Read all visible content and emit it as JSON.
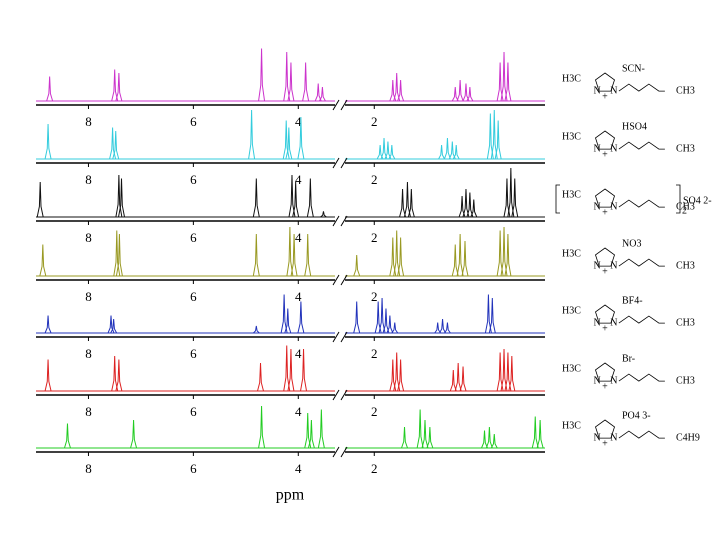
{
  "chart_data": {
    "type": "stacked-spectra",
    "xlabel": "ppm",
    "segments": [
      {
        "xlim": [
          9.0,
          3.3
        ]
      },
      {
        "xlim": [
          2.3,
          0.25
        ]
      }
    ],
    "xticks": [
      8,
      6,
      4,
      2
    ],
    "structure_common": {
      "atom": "N",
      "charge": "+"
    },
    "series": [
      {
        "color": "#cc33cc",
        "structure": {
          "left": "H3C",
          "anion": "SCN-",
          "right": "CH3"
        },
        "peaks": [
          8.74,
          7.5,
          7.42,
          4.7,
          4.22,
          4.14,
          3.86,
          3.62,
          3.54,
          1.81,
          1.77,
          1.73,
          1.17,
          1.12,
          1.06,
          1.02,
          0.71,
          0.67,
          0.63
        ],
        "heights": [
          35,
          45,
          40,
          75,
          70,
          55,
          55,
          25,
          20,
          30,
          40,
          30,
          20,
          30,
          25,
          20,
          55,
          70,
          55
        ]
      },
      {
        "color": "#33ccdd",
        "structure": {
          "left": "H3C",
          "anion": "HSO4",
          "right": "CH3"
        },
        "peaks": [
          8.77,
          7.54,
          7.48,
          4.89,
          4.23,
          4.18,
          3.95,
          1.94,
          1.9,
          1.86,
          1.82,
          1.31,
          1.25,
          1.2,
          1.16,
          0.81,
          0.77,
          0.73
        ],
        "heights": [
          50,
          45,
          40,
          70,
          55,
          45,
          60,
          20,
          30,
          25,
          20,
          20,
          30,
          25,
          20,
          65,
          70,
          55
        ]
      },
      {
        "color": "#111111",
        "structure": {
          "left": "H3C",
          "anion": "SO4 2-",
          "right": "CH3",
          "count": "2"
        },
        "peaks": [
          8.92,
          7.42,
          7.37,
          4.8,
          4.12,
          4.05,
          3.77,
          3.52,
          1.71,
          1.66,
          1.62,
          1.1,
          1.06,
          1.02,
          0.98,
          0.64,
          0.6,
          0.56
        ],
        "heights": [
          50,
          60,
          55,
          55,
          60,
          50,
          55,
          8,
          40,
          50,
          40,
          30,
          40,
          35,
          25,
          55,
          70,
          55
        ]
      },
      {
        "color": "#999922",
        "structure": {
          "left": "H3C",
          "anion": "NO3",
          "right": "CH3"
        },
        "peaks": [
          8.87,
          7.46,
          7.41,
          4.8,
          4.16,
          4.08,
          3.82,
          2.18,
          1.81,
          1.77,
          1.73,
          1.17,
          1.12,
          1.07,
          0.71,
          0.67,
          0.63
        ],
        "heights": [
          45,
          65,
          60,
          60,
          70,
          60,
          60,
          30,
          55,
          65,
          55,
          45,
          60,
          50,
          65,
          70,
          60
        ]
      },
      {
        "color": "#2233bb",
        "structure": {
          "left": "H3C",
          "anion": "BF4-",
          "right": "CH3"
        },
        "peaks": [
          8.77,
          7.57,
          7.52,
          4.8,
          4.27,
          4.2,
          3.95,
          2.18,
          1.96,
          1.92,
          1.88,
          1.84,
          1.79,
          1.35,
          1.3,
          1.25,
          0.83,
          0.79
        ],
        "heights": [
          25,
          25,
          20,
          10,
          55,
          35,
          45,
          45,
          45,
          50,
          35,
          25,
          15,
          15,
          20,
          15,
          55,
          50
        ]
      },
      {
        "color": "#dd2222",
        "structure": {
          "left": "H3C",
          "anion": "Br-",
          "right": "CH3"
        },
        "peaks": [
          8.77,
          7.5,
          7.42,
          4.72,
          4.22,
          4.14,
          3.9,
          1.81,
          1.77,
          1.73,
          1.19,
          1.14,
          1.09,
          0.71,
          0.67,
          0.63,
          0.59
        ],
        "heights": [
          45,
          50,
          45,
          40,
          65,
          60,
          60,
          45,
          55,
          45,
          30,
          40,
          35,
          55,
          60,
          55,
          50
        ]
      },
      {
        "color": "#22cc22",
        "structure": {
          "left": "H3C",
          "anion": "PO4 3-",
          "right": "C4H9"
        },
        "peaks": [
          8.4,
          7.14,
          4.7,
          3.82,
          3.75,
          3.56,
          1.69,
          1.53,
          1.48,
          1.43,
          0.87,
          0.82,
          0.77,
          0.35,
          0.3
        ],
        "heights": [
          35,
          40,
          60,
          50,
          40,
          55,
          30,
          55,
          40,
          30,
          25,
          30,
          20,
          45,
          40
        ]
      }
    ]
  }
}
